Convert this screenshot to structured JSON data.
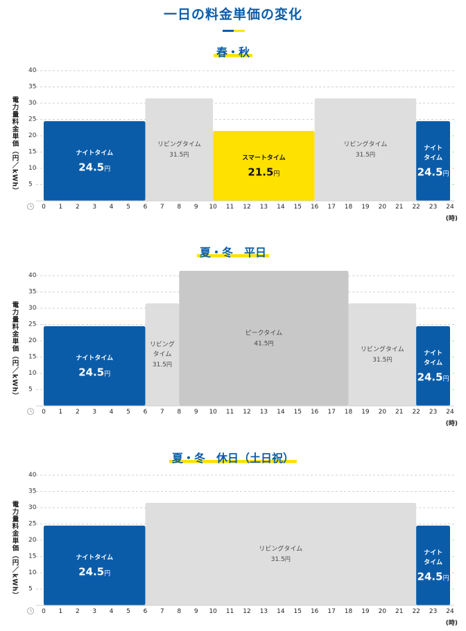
{
  "page": {
    "title": "一日の料金単価の変化"
  },
  "colors": {
    "night": "#0a5ca8",
    "living": "#dedede",
    "smart": "#ffe100",
    "peak": "#c8c8c8",
    "grid": "#cfcfcf",
    "accent_blue": "#0a5ca8",
    "accent_yellow": "#ffe100"
  },
  "chart_data": [
    {
      "type": "bar",
      "title": "春・秋",
      "ylabel": "電力量料金単価（円／kWh）",
      "xunit": "(時)",
      "ylim": [
        0,
        40
      ],
      "yticks": [
        5,
        10,
        15,
        20,
        25,
        30,
        35,
        40
      ],
      "xticks": [
        "0",
        "1",
        "2",
        "3",
        "4",
        "5",
        "6",
        "7",
        "8",
        "9",
        "10",
        "11",
        "12",
        "13",
        "14",
        "15",
        "16",
        "17",
        "18",
        "19",
        "20",
        "21",
        "22",
        "23",
        "24"
      ],
      "bars": [
        {
          "start": 0,
          "end": 6,
          "label": [
            "ナイトタイム"
          ],
          "value": 24.5,
          "price": "24.5",
          "unit": "円",
          "kind": "night"
        },
        {
          "start": 6,
          "end": 10,
          "label": [
            "リビングタイム"
          ],
          "value": 31.5,
          "price": "31.5",
          "unit": "円",
          "kind": "living"
        },
        {
          "start": 10,
          "end": 16,
          "label": [
            "スマートタイム"
          ],
          "value": 21.5,
          "price": "21.5",
          "unit": "円",
          "kind": "smart"
        },
        {
          "start": 16,
          "end": 22,
          "label": [
            "リビングタイム"
          ],
          "value": 31.5,
          "price": "31.5",
          "unit": "円",
          "kind": "living"
        },
        {
          "start": 22,
          "end": 24,
          "label": [
            "ナイト",
            "タイム"
          ],
          "value": 24.5,
          "price": "24.5",
          "unit": "円",
          "kind": "night"
        }
      ]
    },
    {
      "type": "bar",
      "title": "夏・冬　平日",
      "ylabel": "電力量料金単価（円／kWh）",
      "xunit": "(時)",
      "ylim": [
        0,
        40
      ],
      "yticks": [
        5,
        10,
        15,
        20,
        25,
        30,
        35,
        40
      ],
      "xticks": [
        "0",
        "1",
        "2",
        "3",
        "4",
        "5",
        "6",
        "7",
        "8",
        "9",
        "10",
        "11",
        "12",
        "13",
        "14",
        "15",
        "16",
        "17",
        "18",
        "19",
        "20",
        "21",
        "22",
        "23",
        "24"
      ],
      "bars": [
        {
          "start": 0,
          "end": 6,
          "label": [
            "ナイトタイム"
          ],
          "value": 24.5,
          "price": "24.5",
          "unit": "円",
          "kind": "night"
        },
        {
          "start": 6,
          "end": 8,
          "label": [
            "リビング",
            "タイム"
          ],
          "value": 31.5,
          "price": "31.5",
          "unit": "円",
          "kind": "living"
        },
        {
          "start": 8,
          "end": 18,
          "label": [
            "ピークタイム"
          ],
          "value": 41.5,
          "price": "41.5",
          "unit": "円",
          "kind": "peak"
        },
        {
          "start": 18,
          "end": 22,
          "label": [
            "リビングタイム"
          ],
          "value": 31.5,
          "price": "31.5",
          "unit": "円",
          "kind": "living"
        },
        {
          "start": 22,
          "end": 24,
          "label": [
            "ナイト",
            "タイム"
          ],
          "value": 24.5,
          "price": "24.5",
          "unit": "円",
          "kind": "night"
        }
      ]
    },
    {
      "type": "bar",
      "title": "夏・冬　休日（土日祝）",
      "ylabel": "電力量料金単価（円／kWh）",
      "xunit": "(時)",
      "ylim": [
        0,
        40
      ],
      "yticks": [
        5,
        10,
        15,
        20,
        25,
        30,
        35,
        40
      ],
      "xticks": [
        "0",
        "1",
        "2",
        "3",
        "4",
        "5",
        "6",
        "7",
        "8",
        "9",
        "10",
        "11",
        "12",
        "13",
        "14",
        "15",
        "16",
        "17",
        "18",
        "19",
        "20",
        "21",
        "22",
        "23",
        "24"
      ],
      "bars": [
        {
          "start": 0,
          "end": 6,
          "label": [
            "ナイトタイム"
          ],
          "value": 24.5,
          "price": "24.5",
          "unit": "円",
          "kind": "night"
        },
        {
          "start": 6,
          "end": 22,
          "label": [
            "リビングタイム"
          ],
          "value": 31.5,
          "price": "31.5",
          "unit": "円",
          "kind": "living"
        },
        {
          "start": 22,
          "end": 24,
          "label": [
            "ナイト",
            "タイム"
          ],
          "value": 24.5,
          "price": "24.5",
          "unit": "円",
          "kind": "night"
        }
      ]
    }
  ]
}
